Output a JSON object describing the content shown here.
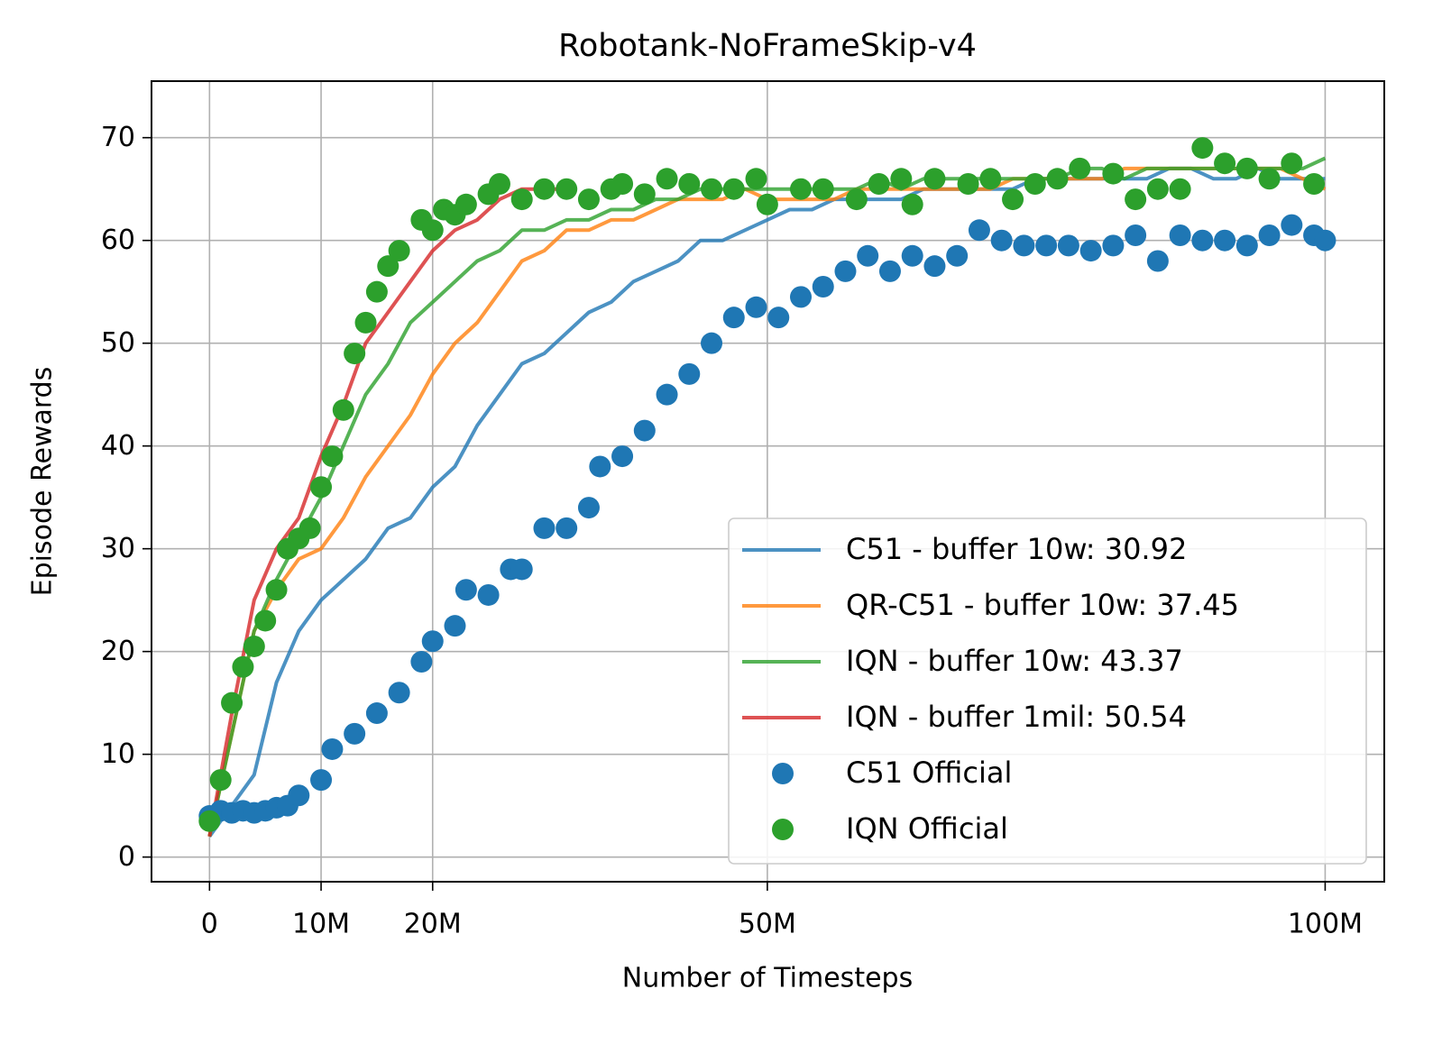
{
  "chart_data": {
    "type": "line",
    "title": "Robotank-NoFrameSkip-v4",
    "x_label": "Number of Timesteps",
    "y_label": "Episode Rewards",
    "xlim": [
      -5200000,
      105300000
    ],
    "ylim": [
      -2.4,
      75.5
    ],
    "xticks": [
      0,
      {
        "value": 10000000,
        "label": "10M"
      },
      {
        "value": 20000000,
        "label": "20M"
      },
      {
        "value": 50000000,
        "label": "50M"
      },
      {
        "value": 100000000,
        "label": "100M"
      }
    ],
    "yticks": [
      0,
      10,
      20,
      30,
      40,
      50,
      60,
      70
    ],
    "grid": true,
    "legend": "lower right",
    "series": [
      {
        "name": "C51 - buffer 10w: 30.92",
        "type": "line",
        "color": "#1f77b4",
        "x": [
          0,
          2000000,
          4000000,
          6000000,
          8000000,
          10000000,
          12000000,
          14000000,
          16000000,
          18000000,
          20000000,
          22000000,
          24000000,
          26000000,
          28000000,
          30000000,
          32000000,
          34000000,
          36000000,
          38000000,
          40000000,
          42000000,
          44000000,
          46000000,
          48000000,
          50000000,
          52000000,
          54000000,
          56000000,
          58000000,
          60000000,
          62000000,
          64000000,
          66000000,
          68000000,
          70000000,
          72000000,
          74000000,
          76000000,
          78000000,
          80000000,
          82000000,
          84000000,
          86000000,
          88000000,
          90000000,
          92000000,
          94000000,
          96000000,
          98000000,
          100000000
        ],
        "values": [
          2,
          5,
          8,
          17,
          22,
          25,
          27,
          29,
          32,
          33,
          36,
          38,
          42,
          45,
          48,
          49,
          51,
          53,
          54,
          56,
          57,
          58,
          60,
          60,
          61,
          62,
          63,
          63,
          64,
          64,
          64,
          64,
          65,
          65,
          65,
          65,
          65,
          66,
          66,
          66,
          66,
          66,
          66,
          67,
          67,
          66,
          66,
          67,
          66,
          66,
          66
        ]
      },
      {
        "name": "QR-C51 - buffer 10w: 37.45",
        "type": "line",
        "color": "#ff7f0e",
        "x": [
          0,
          2000000,
          4000000,
          6000000,
          8000000,
          10000000,
          12000000,
          14000000,
          16000000,
          18000000,
          20000000,
          22000000,
          24000000,
          26000000,
          28000000,
          30000000,
          32000000,
          34000000,
          36000000,
          38000000,
          40000000,
          42000000,
          44000000,
          46000000,
          48000000,
          50000000,
          52000000,
          54000000,
          56000000,
          58000000,
          60000000,
          62000000,
          64000000,
          66000000,
          68000000,
          70000000,
          72000000,
          74000000,
          76000000,
          78000000,
          80000000,
          82000000,
          84000000,
          86000000,
          88000000,
          90000000,
          92000000,
          94000000,
          96000000,
          98000000,
          100000000
        ],
        "values": [
          2,
          12,
          22,
          26,
          29,
          30,
          33,
          37,
          40,
          43,
          47,
          50,
          52,
          55,
          58,
          59,
          61,
          61,
          62,
          62,
          63,
          64,
          64,
          64,
          65,
          64,
          64,
          64,
          64,
          65,
          65,
          65,
          65,
          65,
          65,
          65,
          66,
          66,
          66,
          66,
          66,
          67,
          67,
          67,
          67,
          67,
          67,
          67,
          67,
          66,
          65
        ]
      },
      {
        "name": "IQN - buffer 10w: 43.37",
        "type": "line",
        "color": "#2ca02c",
        "x": [
          0,
          2000000,
          4000000,
          6000000,
          8000000,
          10000000,
          12000000,
          14000000,
          16000000,
          18000000,
          20000000,
          22000000,
          24000000,
          26000000,
          28000000,
          30000000,
          32000000,
          34000000,
          36000000,
          38000000,
          40000000,
          42000000,
          44000000,
          46000000,
          48000000,
          50000000,
          52000000,
          54000000,
          56000000,
          58000000,
          60000000,
          62000000,
          64000000,
          66000000,
          68000000,
          70000000,
          72000000,
          74000000,
          76000000,
          78000000,
          80000000,
          82000000,
          84000000,
          86000000,
          88000000,
          90000000,
          92000000,
          94000000,
          96000000,
          98000000,
          100000000
        ],
        "values": [
          2,
          12,
          22,
          27,
          31,
          35,
          40,
          45,
          48,
          52,
          54,
          56,
          58,
          59,
          61,
          61,
          62,
          62,
          63,
          63,
          64,
          64,
          65,
          65,
          65,
          65,
          65,
          65,
          65,
          65,
          66,
          65,
          66,
          66,
          66,
          66,
          66,
          66,
          66,
          67,
          67,
          66,
          67,
          67,
          67,
          67,
          67,
          67,
          67,
          67,
          68
        ]
      },
      {
        "name": "IQN - buffer 1mil: 50.54",
        "type": "line",
        "color": "#d62728",
        "x": [
          0,
          2000000,
          4000000,
          6000000,
          8000000,
          10000000,
          12000000,
          14000000,
          16000000,
          18000000,
          20000000,
          22000000,
          24000000,
          26000000,
          28000000,
          30000000,
          32000000
        ],
        "values": [
          2,
          14,
          25,
          30,
          33,
          39,
          44,
          50,
          53,
          56,
          59,
          61,
          62,
          64,
          65,
          65,
          65
        ]
      },
      {
        "name": "C51 Official",
        "type": "scatter",
        "color": "#1f77b4",
        "x": [
          0,
          1000000,
          2000000,
          3000000,
          4000000,
          5000000,
          6000000,
          7000000,
          8000000,
          10000000,
          11000000,
          13000000,
          15000000,
          17000000,
          19000000,
          20000000,
          22000000,
          23000000,
          25000000,
          27000000,
          28000000,
          30000000,
          32000000,
          34000000,
          35000000,
          37000000,
          39000000,
          41000000,
          43000000,
          45000000,
          47000000,
          49000000,
          51000000,
          53000000,
          55000000,
          57000000,
          59000000,
          61000000,
          63000000,
          65000000,
          67000000,
          69000000,
          71000000,
          73000000,
          75000000,
          77000000,
          79000000,
          81000000,
          83000000,
          85000000,
          87000000,
          89000000,
          91000000,
          93000000,
          95000000,
          97000000,
          99000000,
          100000000
        ],
        "values": [
          4,
          4.5,
          4.3,
          4.5,
          4.3,
          4.5,
          4.8,
          5,
          6,
          7.5,
          10.5,
          12,
          14,
          16,
          19,
          21,
          22.5,
          26,
          25.5,
          28,
          28,
          32,
          32,
          34,
          38,
          39,
          41.5,
          45,
          47,
          50,
          52.5,
          53.5,
          52.5,
          54.5,
          55.5,
          57,
          58.5,
          57,
          58.5,
          57.5,
          58.5,
          61,
          60,
          59.5,
          59.5,
          59.5,
          59,
          59.5,
          60.5,
          58,
          60.5,
          60,
          60,
          59.5,
          60.5,
          61.5,
          60.5,
          60
        ]
      },
      {
        "name": "IQN Official",
        "type": "scatter",
        "color": "#2ca02c",
        "x": [
          0,
          1000000,
          2000000,
          3000000,
          4000000,
          5000000,
          6000000,
          7000000,
          8000000,
          9000000,
          10000000,
          11000000,
          12000000,
          13000000,
          14000000,
          15000000,
          16000000,
          17000000,
          19000000,
          20000000,
          21000000,
          22000000,
          23000000,
          25000000,
          26000000,
          28000000,
          30000000,
          32000000,
          34000000,
          36000000,
          37000000,
          39000000,
          41000000,
          43000000,
          45000000,
          47000000,
          49000000,
          50000000,
          53000000,
          55000000,
          58000000,
          60000000,
          62000000,
          63000000,
          65000000,
          68000000,
          70000000,
          72000000,
          74000000,
          76000000,
          78000000,
          81000000,
          83000000,
          85000000,
          87000000,
          89000000,
          91000000,
          93000000,
          95000000,
          97000000,
          99000000
        ],
        "values": [
          3.5,
          7.5,
          15,
          18.5,
          20.5,
          23,
          26,
          30,
          31,
          32,
          36,
          39,
          43.5,
          49,
          52,
          55,
          57.5,
          59,
          62,
          61,
          63,
          62.5,
          63.5,
          64.5,
          65.5,
          64,
          65,
          65,
          64,
          65,
          65.5,
          64.5,
          66,
          65.5,
          65,
          65,
          66,
          63.5,
          65,
          65,
          64,
          65.5,
          66,
          63.5,
          66,
          65.5,
          66,
          64,
          65.5,
          66,
          67,
          66.5,
          64,
          65,
          65,
          69,
          67.5,
          67,
          66,
          67.5,
          65.5
        ]
      }
    ]
  }
}
